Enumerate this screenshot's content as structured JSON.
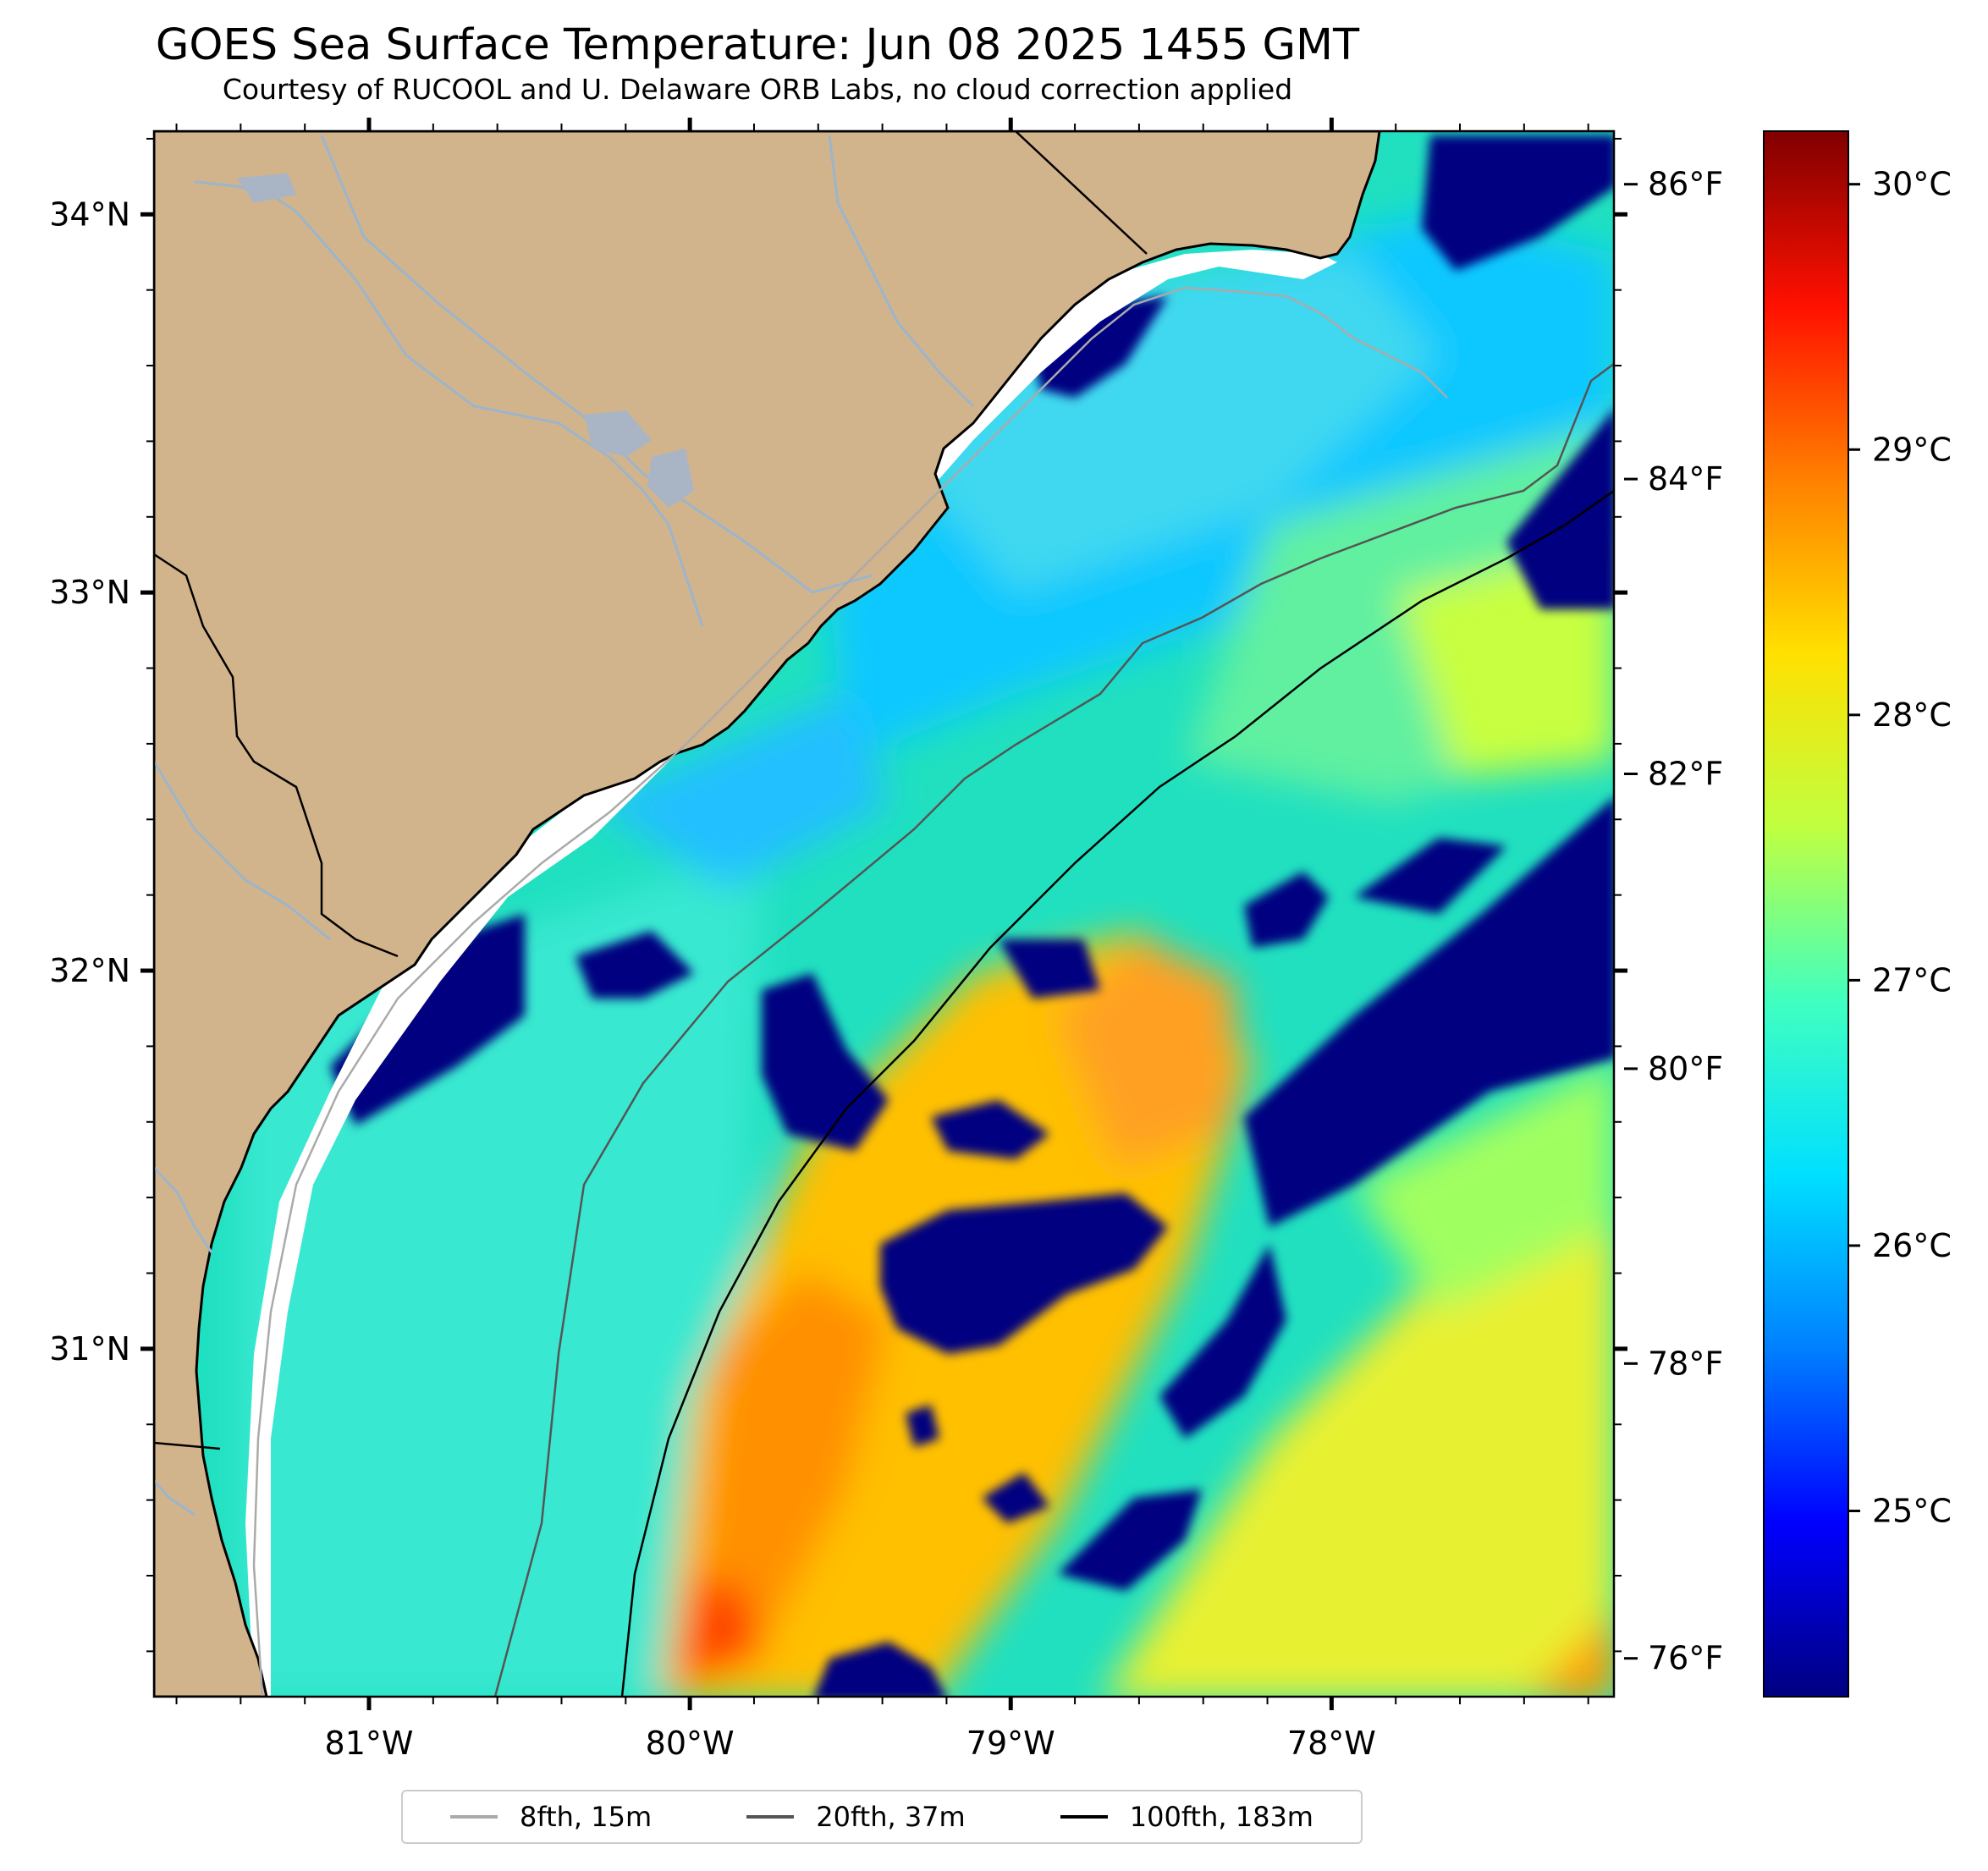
{
  "title": "GOES Sea Surface Temperature: Jun 08 2025 1455 GMT",
  "subtitle": "Courtesy of RUCOOL and U. Delaware ORB Labs, no cloud correction applied",
  "map": {
    "projection": "lat-lon",
    "lon_range": [
      -81.67,
      -77.12
    ],
    "lat_range": [
      30.08,
      34.22
    ],
    "land_color": "#d2b48c",
    "cloud_mask_color": "#000080",
    "nodata_color": "#ffffff",
    "river_color": "#9bb5cc",
    "lon_ticks": [
      {
        "value": -81,
        "label": "81°W"
      },
      {
        "value": -80,
        "label": "80°W"
      },
      {
        "value": -79,
        "label": "79°W"
      },
      {
        "value": -78,
        "label": "78°W"
      }
    ],
    "lat_ticks": [
      {
        "value": 34,
        "label": "34°N"
      },
      {
        "value": 33,
        "label": "33°N"
      },
      {
        "value": 32,
        "label": "32°N"
      },
      {
        "value": 31,
        "label": "31°N"
      }
    ]
  },
  "colorbar": {
    "colormap": "jet",
    "range_c": [
      24.3,
      30.2
    ],
    "colors": [
      "#000080",
      "#0000ff",
      "#0080ff",
      "#00e0ff",
      "#40ffc0",
      "#c0ff40",
      "#ffe000",
      "#ff8000",
      "#ff1000",
      "#800000"
    ],
    "celsius_ticks": [
      {
        "value": 25,
        "label": "25°C"
      },
      {
        "value": 26,
        "label": "26°C"
      },
      {
        "value": 27,
        "label": "27°C"
      },
      {
        "value": 28,
        "label": "28°C"
      },
      {
        "value": 29,
        "label": "29°C"
      },
      {
        "value": 30,
        "label": "30°C"
      }
    ],
    "fahrenheit_ticks": [
      {
        "value": 76,
        "label": "76°F"
      },
      {
        "value": 78,
        "label": "78°F"
      },
      {
        "value": 80,
        "label": "80°F"
      },
      {
        "value": 82,
        "label": "82°F"
      },
      {
        "value": 84,
        "label": "84°F"
      },
      {
        "value": 86,
        "label": "86°F"
      }
    ]
  },
  "legend": {
    "items": [
      {
        "label": "8fth, 15m",
        "color": "#aaaaaa"
      },
      {
        "label": "20fth, 37m",
        "color": "#555555"
      },
      {
        "label": "100fth, 183m",
        "color": "#000000"
      }
    ]
  }
}
